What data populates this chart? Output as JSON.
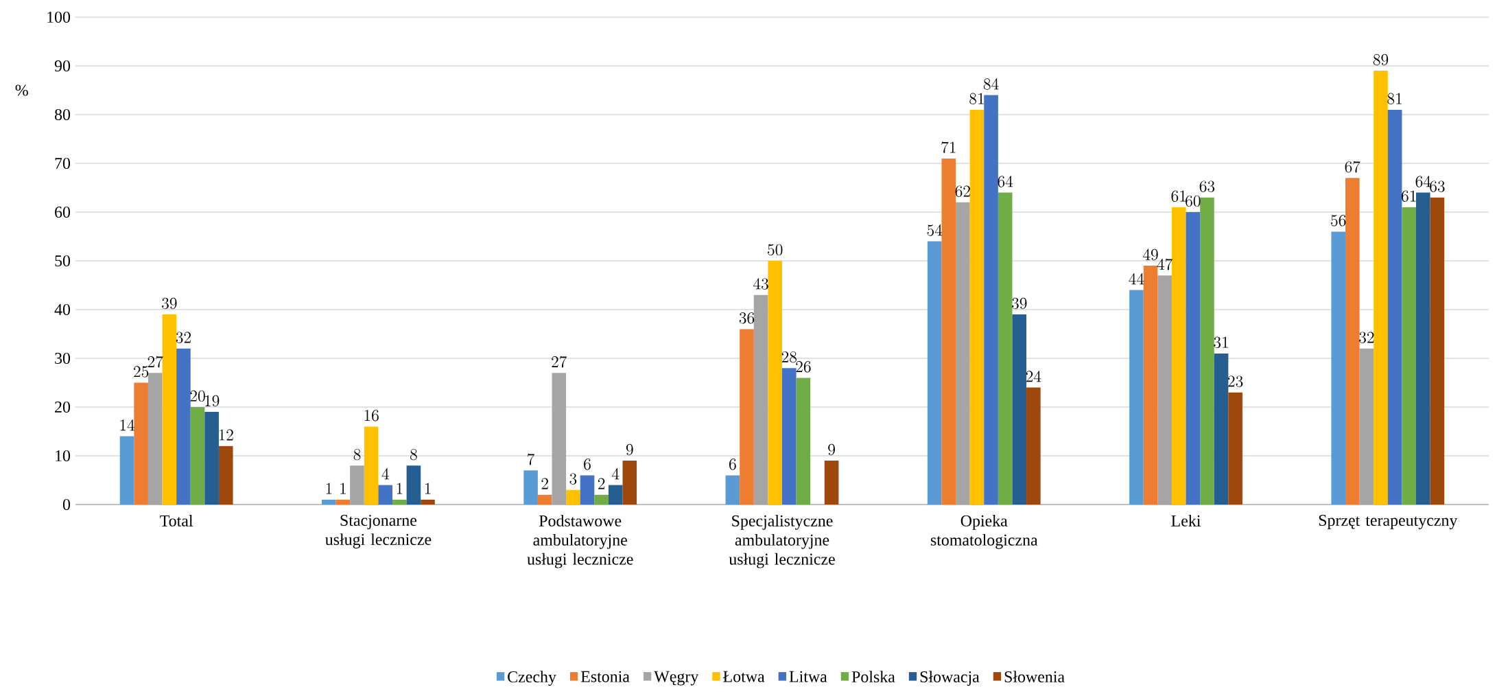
{
  "chart_data": {
    "type": "bar",
    "ylabel": "%",
    "categories": [
      "Total",
      "Stacjonarne usługi lecznicze",
      "Podstawowe ambulatoryjne usługi lecznicze",
      "Specjalistyczne ambulatoryjne usługi lecznicze",
      "Opieka stomatologiczna",
      "Leki",
      "Sprzęt terapeutyczny"
    ],
    "series": [
      {
        "name": "Czechy",
        "color": "#5b9bd5",
        "values": [
          14,
          1,
          7,
          6,
          54,
          44,
          56
        ]
      },
      {
        "name": "Estonia",
        "color": "#ed7d31",
        "values": [
          25,
          1,
          2,
          36,
          71,
          49,
          67
        ]
      },
      {
        "name": "Węgry",
        "color": "#a5a5a5",
        "values": [
          27,
          8,
          27,
          43,
          62,
          47,
          32
        ]
      },
      {
        "name": "Łotwa",
        "color": "#ffc000",
        "values": [
          39,
          16,
          3,
          50,
          81,
          61,
          89
        ]
      },
      {
        "name": "Litwa",
        "color": "#4472c4",
        "values": [
          32,
          4,
          6,
          28,
          84,
          60,
          81
        ]
      },
      {
        "name": "Polska",
        "color": "#70ad47",
        "values": [
          20,
          1,
          2,
          26,
          64,
          63,
          61
        ]
      },
      {
        "name": "Słowacja",
        "color": "#255e91",
        "values": [
          19,
          8,
          4,
          null,
          39,
          31,
          64
        ]
      },
      {
        "name": "Słowenia",
        "color": "#9e480e",
        "values": [
          12,
          1,
          9,
          9,
          24,
          23,
          63
        ]
      }
    ],
    "ylim": [
      0,
      100
    ],
    "yticks": [
      0,
      10,
      20,
      30,
      40,
      50,
      60,
      70,
      80,
      90,
      100
    ],
    "grid": "y",
    "legend": "bottom",
    "data_labels": true
  }
}
